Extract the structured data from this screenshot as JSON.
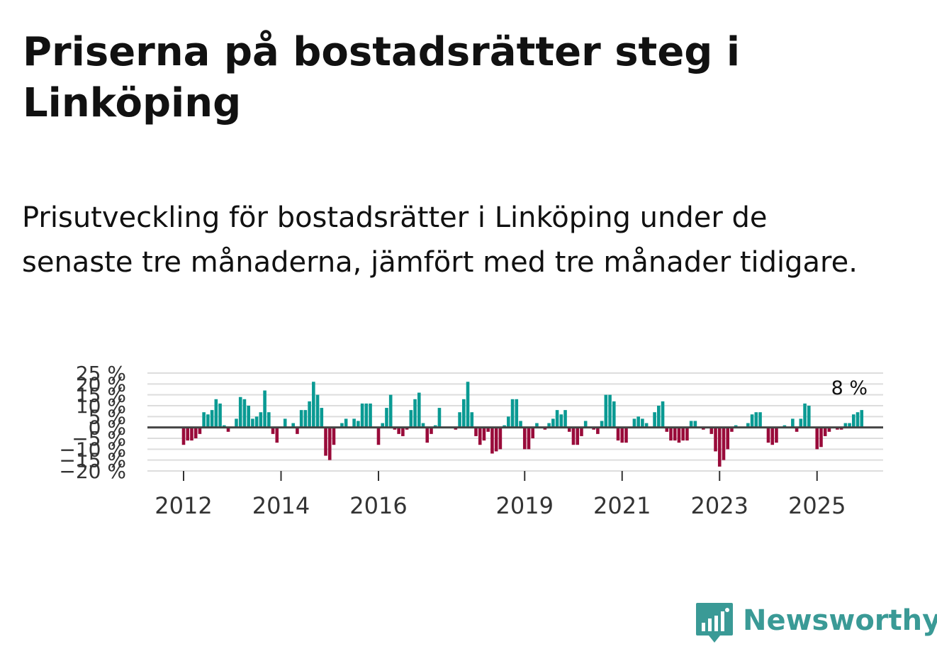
{
  "title": "Priserna på bostadsrätter steg i Linköping",
  "subtitle": "Prisutveckling för bostadsrätter i Linköping under de senaste tre månaderna, jämfört med tre månader tidigare.",
  "brand": {
    "name": "Newsworthy",
    "icon": "newsworthy-logo-icon"
  },
  "colors": {
    "positive": "#0a9a93",
    "negative": "#990b3a",
    "grid": "#dddddd",
    "zero_line": "#444444",
    "text": "#333333",
    "brand": "#3a9a96"
  },
  "chart_data": {
    "type": "bar",
    "title": "Priserna på bostadsrätter steg i Linköping",
    "xlabel": "",
    "ylabel": "",
    "ylim": [
      -20,
      25
    ],
    "y_ticks": [
      -20,
      -15,
      -10,
      -5,
      0,
      5,
      10,
      15,
      20,
      25
    ],
    "y_tick_labels": [
      "−20 %",
      "−15 %",
      "−10 %",
      "−5 %",
      "0 %",
      "5 %",
      "10 %",
      "15 %",
      "20 %",
      "25 %"
    ],
    "x_ticks": [
      2012,
      2014,
      2016,
      2019,
      2021,
      2023,
      2025
    ],
    "x_tick_labels": [
      "2012",
      "2014",
      "2016",
      "2019",
      "2021",
      "2023",
      "2025"
    ],
    "x_start": 2012.0,
    "x_step": 0.0833333,
    "last_value_label": "8 %",
    "values": [
      -8,
      -6,
      -6,
      -5,
      -3,
      7,
      6,
      8,
      13,
      11,
      1,
      -2,
      0,
      4,
      14,
      13,
      10,
      4,
      5,
      7,
      17,
      7,
      -3,
      -7,
      0,
      4,
      0,
      2,
      -3,
      8,
      8,
      12,
      21,
      15,
      9,
      -13,
      -15,
      -8,
      0,
      2,
      4,
      0,
      4,
      3,
      11,
      11,
      11,
      0,
      -8,
      2,
      9,
      15,
      -1,
      -3,
      -4,
      -1,
      8,
      13,
      16,
      2,
      -7,
      -3,
      1,
      9,
      0,
      0,
      0,
      -1,
      7,
      13,
      21,
      7,
      -4,
      -8,
      -6,
      -2,
      -12,
      -11,
      -10,
      1,
      5,
      13,
      13,
      3,
      -10,
      -10,
      -5,
      2,
      0,
      -1,
      2,
      4,
      8,
      6,
      8,
      -2,
      -8,
      -8,
      -4,
      3,
      0,
      -1,
      -3,
      3,
      15,
      15,
      12,
      -6,
      -7,
      -7,
      0,
      4,
      5,
      4,
      2,
      0,
      7,
      10,
      12,
      -2,
      -6,
      -6,
      -7,
      -6,
      -6,
      3,
      3,
      0,
      -1,
      0,
      -3,
      -11,
      -18,
      -15,
      -10,
      -2,
      1,
      0,
      0,
      2,
      6,
      7,
      7,
      0,
      -7,
      -8,
      -7,
      0,
      1,
      0,
      4,
      -2,
      4,
      11,
      10,
      0,
      -10,
      -9,
      -4,
      -2,
      0,
      -1,
      -1,
      2,
      2,
      6,
      7,
      8
    ]
  }
}
